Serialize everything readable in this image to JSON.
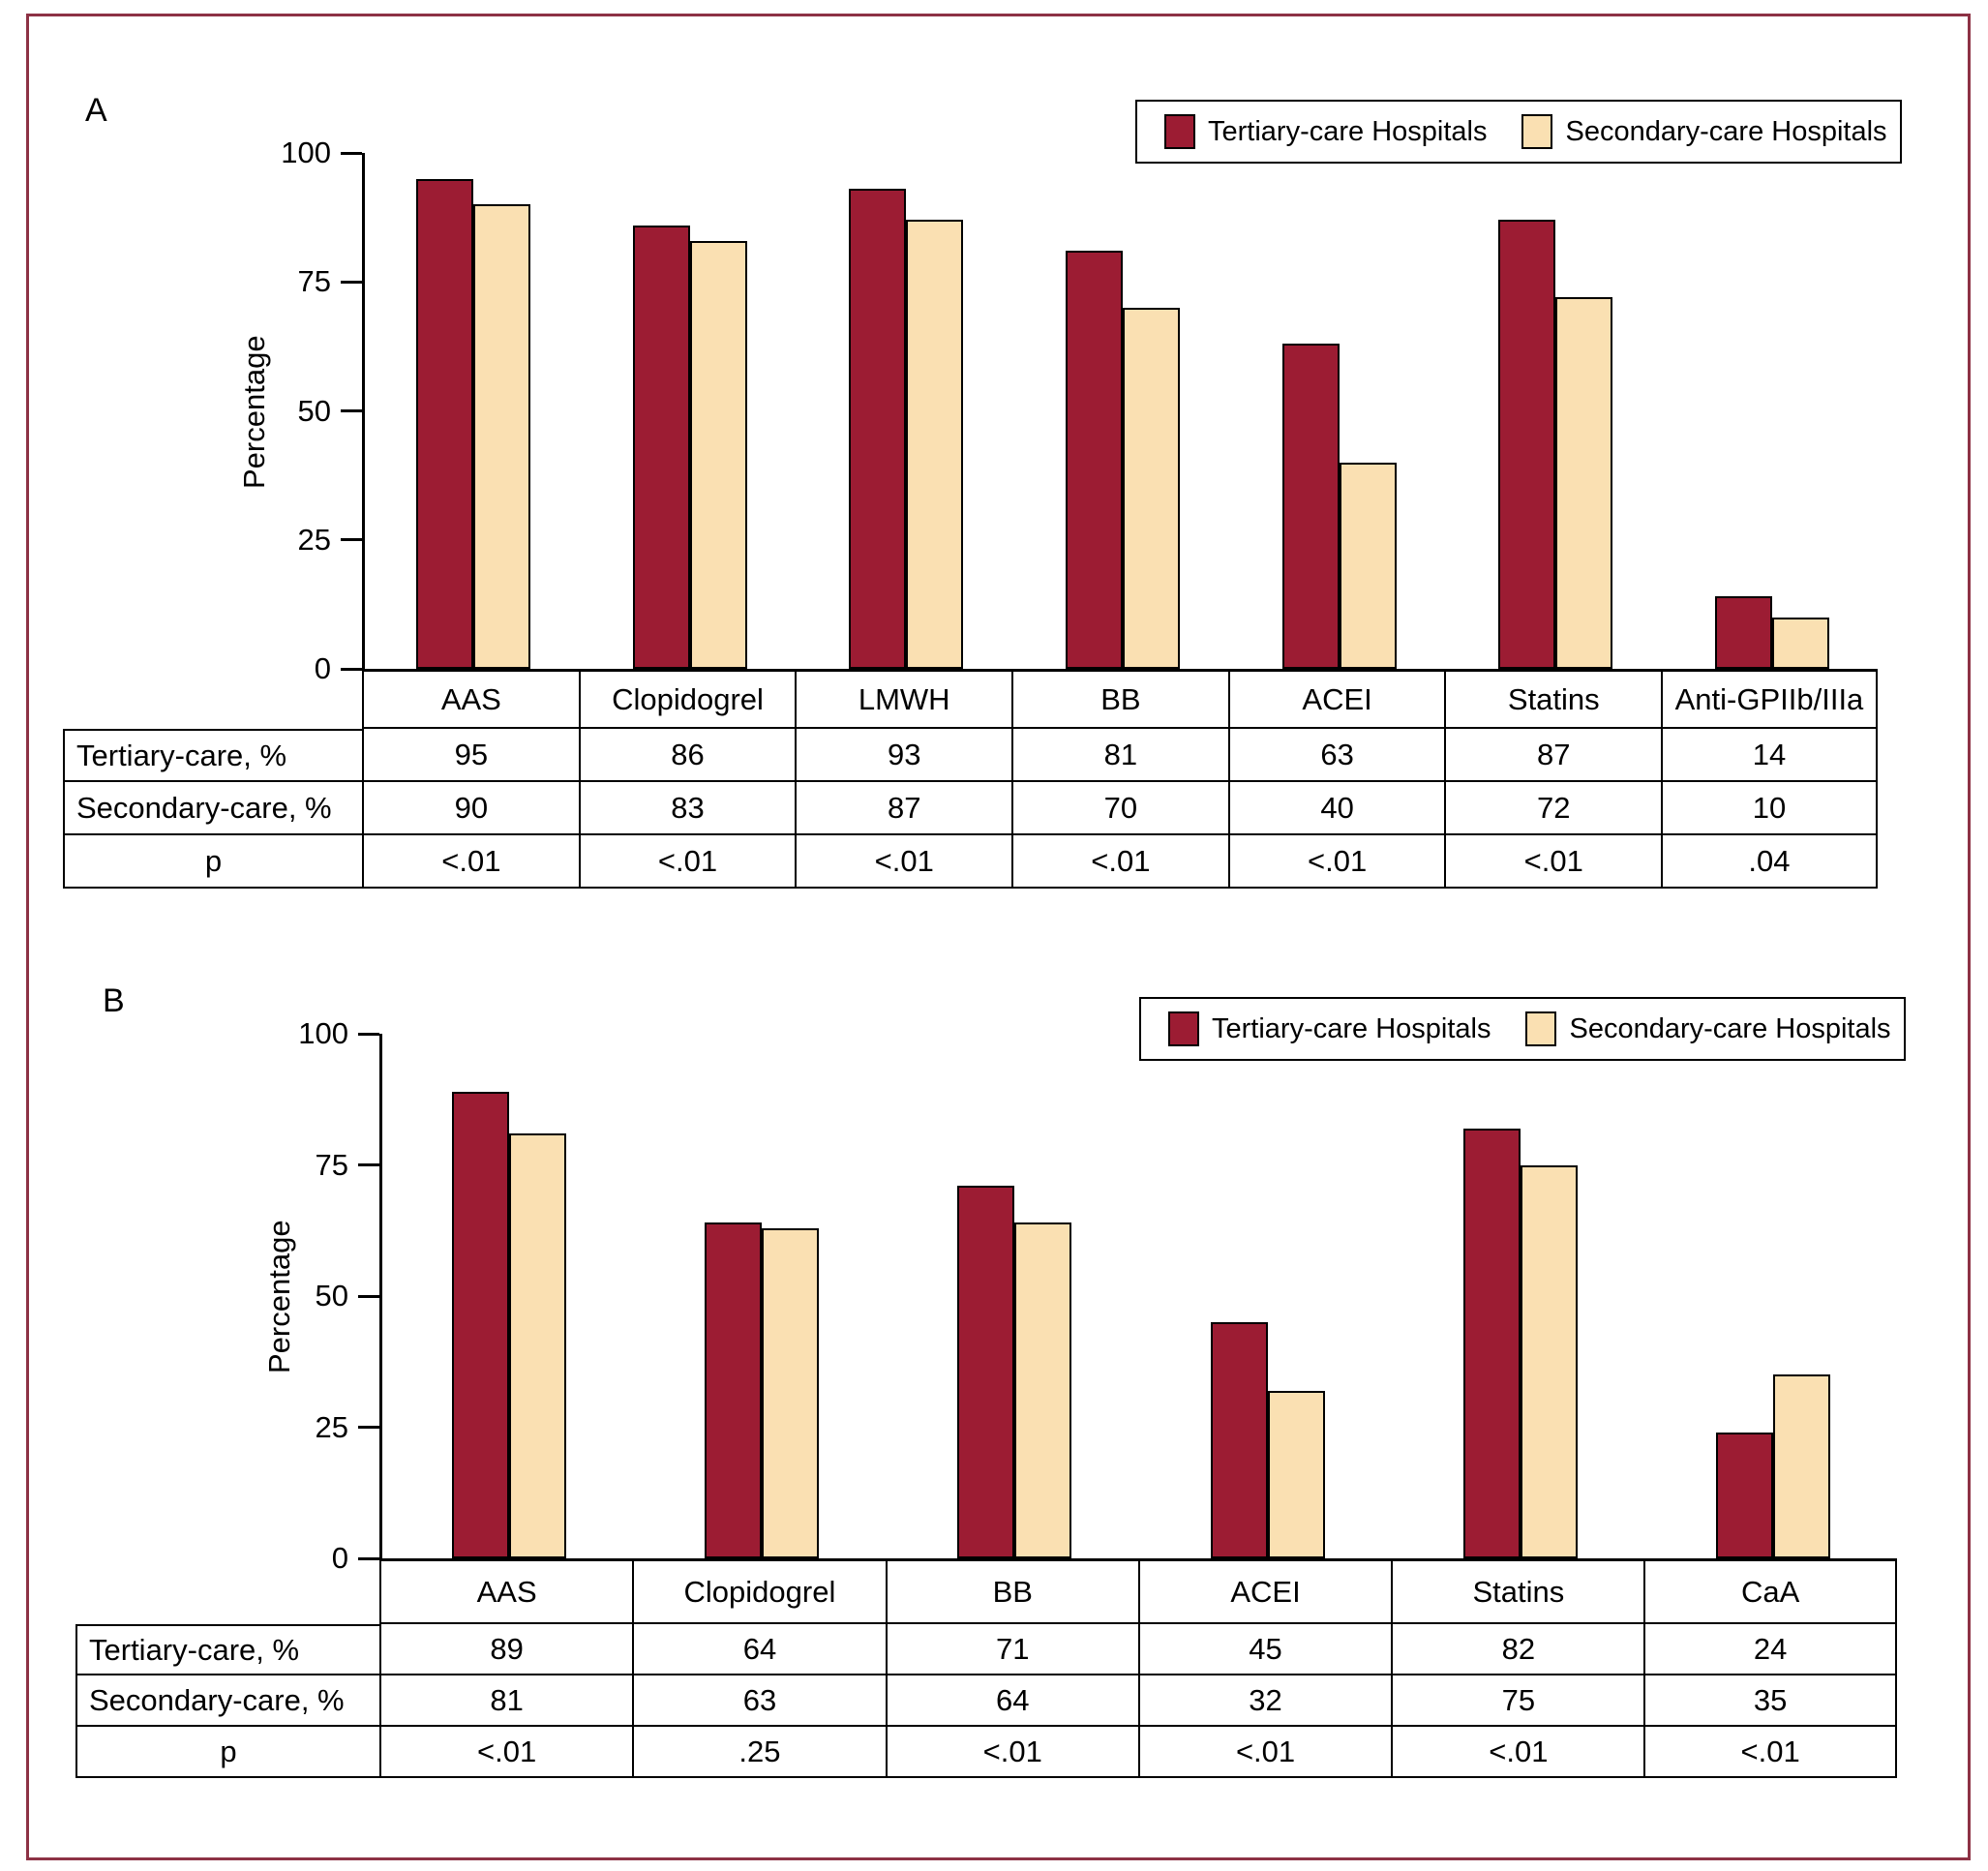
{
  "colors": {
    "tertiary_bar": "#9C1C33",
    "secondary_bar": "#FAE0B2",
    "frame_border": "#8D3245",
    "axis": "#000000"
  },
  "chart_data": [
    {
      "panel": "A",
      "panel_label": "A",
      "type": "bar",
      "ylabel": "Percentage",
      "ylim": [
        0,
        100
      ],
      "yticks": [
        0,
        25,
        50,
        75,
        100
      ],
      "grid": false,
      "legend_position": "top-right",
      "categories": [
        "AAS",
        "Clopidogrel",
        "LMWH",
        "BB",
        "ACEI",
        "Statins",
        "Anti-GPIIb/IIIa"
      ],
      "series": [
        {
          "name": "Tertiary-care Hospitals",
          "values": [
            95,
            86,
            93,
            81,
            63,
            87,
            14
          ]
        },
        {
          "name": "Secondary-care Hospitals",
          "values": [
            90,
            83,
            87,
            70,
            40,
            72,
            10
          ]
        }
      ],
      "table": {
        "row_labels": [
          "Tertiary-care, %",
          "Secondary-care, %",
          "p"
        ],
        "rows": [
          [
            "95",
            "86",
            "93",
            "81",
            "63",
            "87",
            "14"
          ],
          [
            "90",
            "83",
            "87",
            "70",
            "40",
            "72",
            "10"
          ],
          [
            "<.01",
            "<.01",
            "<.01",
            "<.01",
            "<.01",
            "<.01",
            ".04"
          ]
        ]
      }
    },
    {
      "panel": "B",
      "panel_label": "B",
      "type": "bar",
      "ylabel": "Percentage",
      "ylim": [
        0,
        100
      ],
      "yticks": [
        0,
        25,
        50,
        75,
        100
      ],
      "grid": false,
      "legend_position": "top-right",
      "categories": [
        "AAS",
        "Clopidogrel",
        "BB",
        "ACEI",
        "Statins",
        "CaA"
      ],
      "series": [
        {
          "name": "Tertiary-care Hospitals",
          "values": [
            89,
            64,
            71,
            45,
            82,
            24
          ]
        },
        {
          "name": "Secondary-care Hospitals",
          "values": [
            81,
            63,
            64,
            32,
            75,
            35
          ]
        }
      ],
      "table": {
        "row_labels": [
          "Tertiary-care, %",
          "Secondary-care, %",
          "p"
        ],
        "rows": [
          [
            "89",
            "64",
            "71",
            "45",
            "82",
            "24"
          ],
          [
            "81",
            "63",
            "64",
            "32",
            "75",
            "35"
          ],
          [
            "<.01",
            ".25",
            "<.01",
            "<.01",
            "<.01",
            "<.01"
          ]
        ]
      }
    }
  ]
}
